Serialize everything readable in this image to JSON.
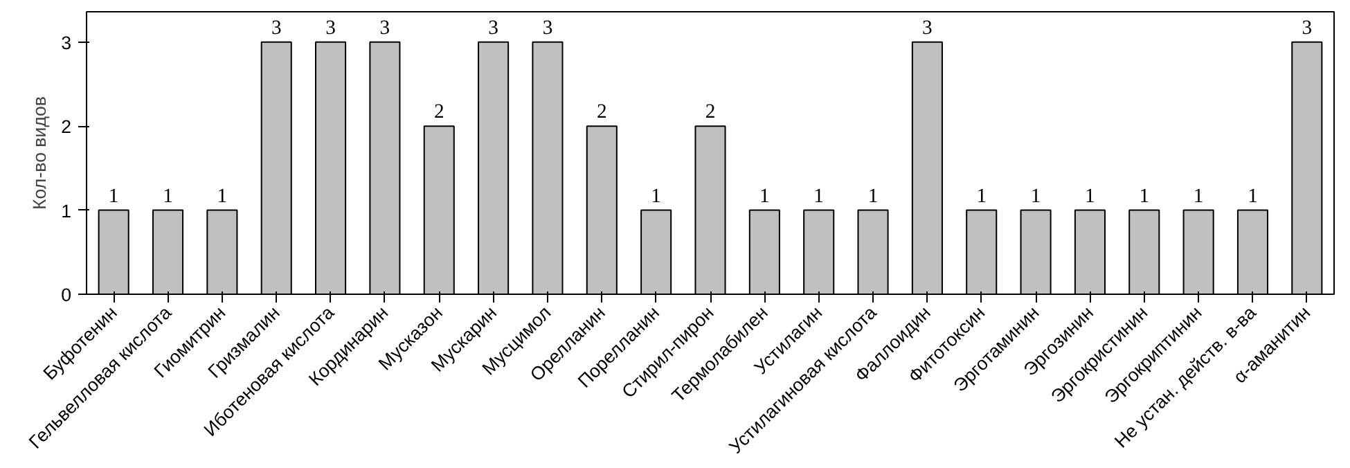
{
  "chart_data": {
    "type": "bar",
    "ylabel": "Кол-во видов",
    "categories": [
      "Буфотенин",
      "Гельвелловая кислота",
      "Гиомитрин",
      "Гризмалин",
      "Иботеновая кислота",
      "Кординарин",
      "Мусказон",
      "Мускарин",
      "Мусцимол",
      "Орелланин",
      "Порелланин",
      "Стирил-пирон",
      "Термолабилен",
      "Устилагин",
      "Устилагиновая кислота",
      "Фаллоидин",
      "Фитотоксин",
      "Эрготаминин",
      "Эргозинин",
      "Эргокристинин",
      "Эргокриптинин",
      "Не устан. действ. в-ва",
      "α-аманитин"
    ],
    "values": [
      1,
      1,
      1,
      3,
      3,
      3,
      2,
      3,
      3,
      2,
      1,
      2,
      1,
      1,
      1,
      3,
      1,
      1,
      1,
      1,
      1,
      1,
      3
    ],
    "color": "#c0c0c0",
    "ylim": [
      0,
      3
    ],
    "yticks": [
      0,
      1,
      2,
      3
    ],
    "grid": false,
    "data_labels": true
  }
}
